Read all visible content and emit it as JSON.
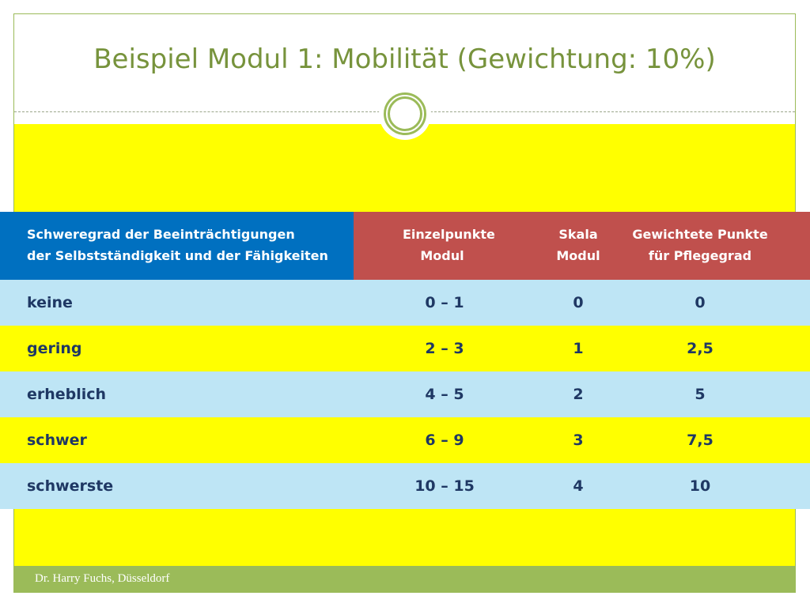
{
  "slide": {
    "title": "Beispiel Modul 1: Mobilität (Gewichtung: 10%)",
    "footer": "Dr. Harry Fuchs, Düsseldorf"
  },
  "table": {
    "header": {
      "col1": [
        "Schweregrad der Beeinträchtigungen",
        "der Selbstständigkeit und der Fähigkeiten"
      ],
      "col2": [
        "Einzelpunkte",
        "Modul"
      ],
      "col3": [
        "Skala",
        "Modul"
      ],
      "col4": [
        "Gewichtete Punkte",
        "für Pflegegrad"
      ]
    },
    "rows": [
      [
        "keine",
        "0 – 1",
        "0",
        "0"
      ],
      [
        "gering",
        "2 – 3",
        "1",
        "2,5"
      ],
      [
        "erheblich",
        "4 – 5",
        "2",
        "5"
      ],
      [
        "schwer",
        "6 – 9",
        "3",
        "7,5"
      ],
      [
        "schwerste",
        "10 – 15",
        "4",
        "10"
      ]
    ]
  },
  "colors": {
    "title": "#77933c",
    "accent_green": "#9bbb59",
    "highlight_yellow": "#ffff00",
    "header_blue": "#0070c0",
    "header_red": "#c0504d",
    "row_blue": "#bee5f5",
    "row_text": "#1f3864"
  },
  "icons": {
    "title_ornament": "double-circle-ornament"
  }
}
